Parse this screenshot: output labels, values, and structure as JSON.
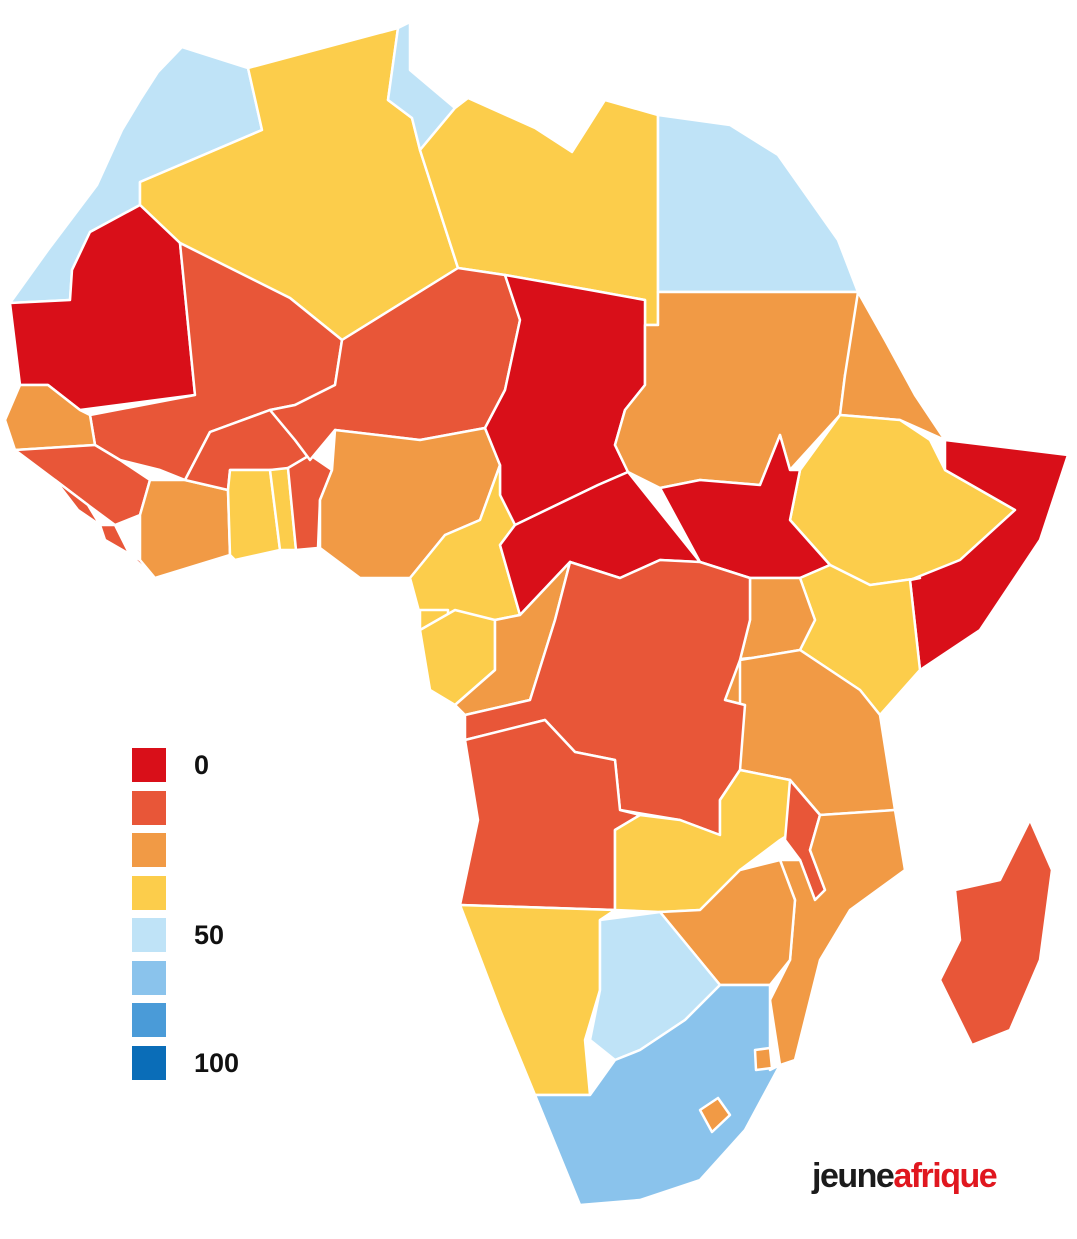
{
  "palette": {
    "red": "#d90f19",
    "red_orange": "#e85638",
    "orange": "#f19a45",
    "yellow": "#fccd4b",
    "light_blue": "#bfe3f7",
    "mid_blue": "#8ac3ec",
    "blue": "#4a9bd8",
    "dark_blue": "#0a6db8"
  },
  "legend": {
    "items": [
      {
        "color": "#d90f19",
        "label": "0"
      },
      {
        "color": "#e85638",
        "label": ""
      },
      {
        "color": "#f19a45",
        "label": ""
      },
      {
        "color": "#fccd4b",
        "label": ""
      },
      {
        "color": "#bfe3f7",
        "label": "50"
      },
      {
        "color": "#8ac3ec",
        "label": ""
      },
      {
        "color": "#4a9bd8",
        "label": ""
      },
      {
        "color": "#0a6db8",
        "label": "100"
      }
    ]
  },
  "brand": {
    "part1": "jeune",
    "part2": "afrique"
  }
}
